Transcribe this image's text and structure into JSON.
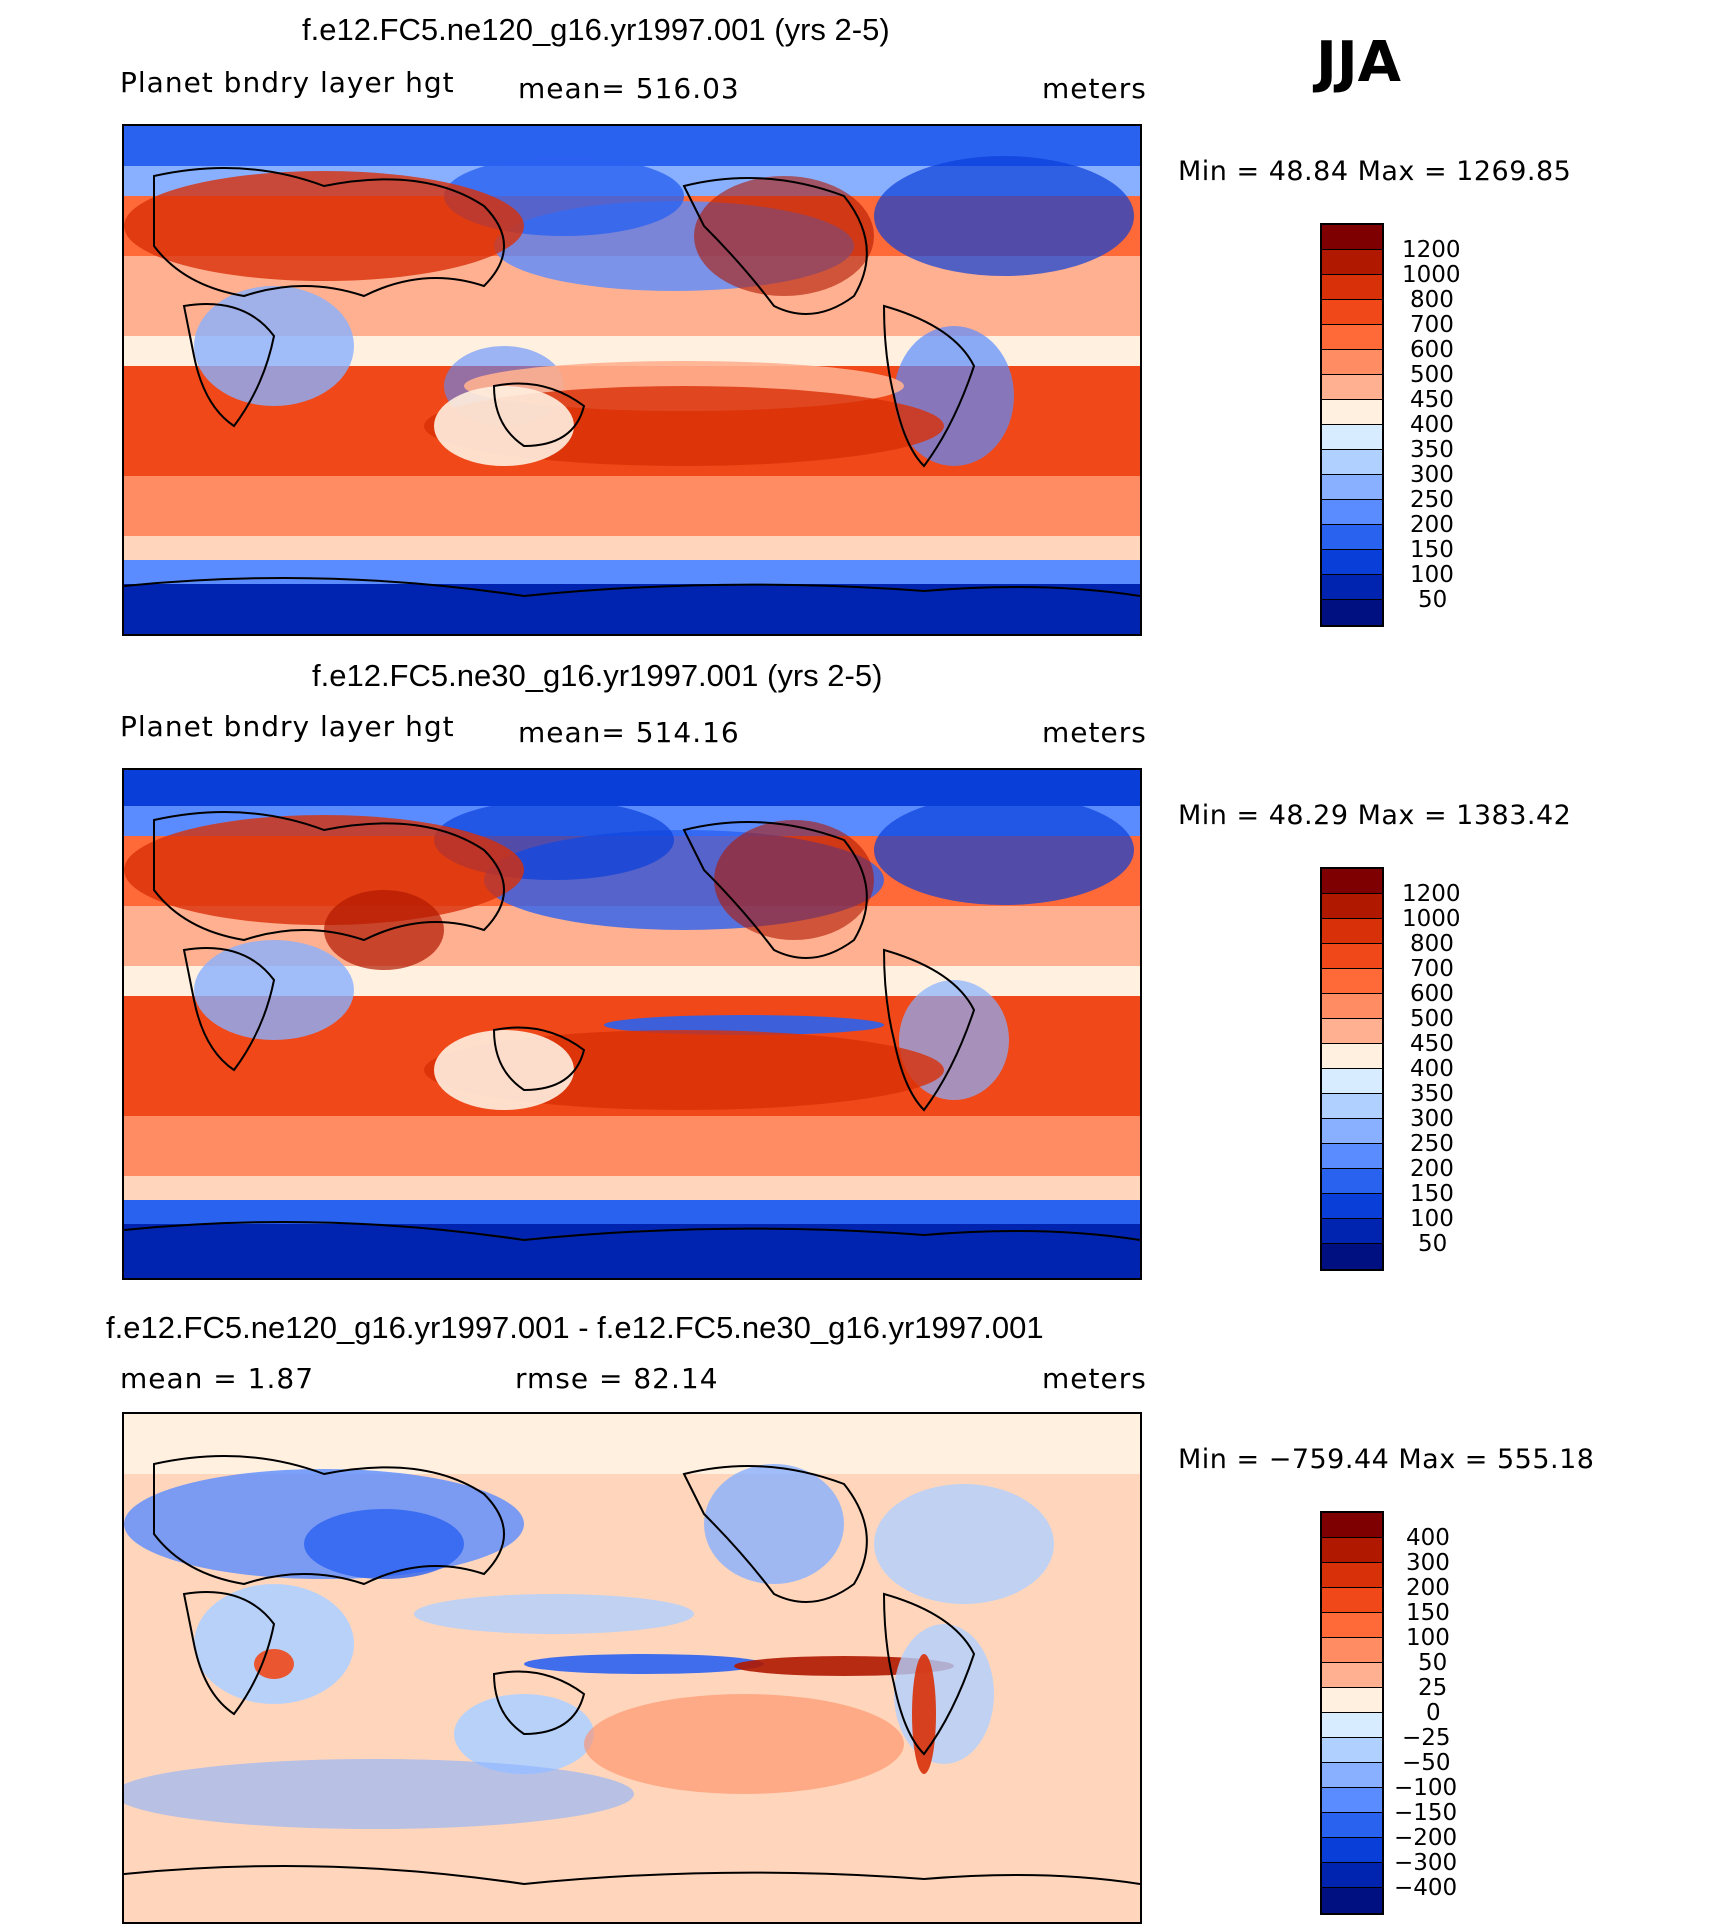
{
  "season": "JJA",
  "panels": [
    {
      "title": "f.e12.FC5.ne120_g16.yr1997.001 (yrs 2-5)",
      "left_label": "Planet bndry layer hgt",
      "center_label": "mean= 516.03",
      "right_label": "meters",
      "minmax": "Min =   48.84  Max  =  1269.85",
      "colorbar_labels": [
        "1200",
        "1000",
        "800",
        "700",
        "600",
        "500",
        "450",
        "400",
        "350",
        "300",
        "250",
        "200",
        "150",
        "100",
        "50"
      ]
    },
    {
      "title": "f.e12.FC5.ne30_g16.yr1997.001 (yrs 2-5)",
      "left_label": "Planet bndry layer hgt",
      "center_label": "mean= 514.16",
      "right_label": "meters",
      "minmax": "Min =   48.29  Max  =  1383.42",
      "colorbar_labels": [
        "1200",
        "1000",
        "800",
        "700",
        "600",
        "500",
        "450",
        "400",
        "350",
        "300",
        "250",
        "200",
        "150",
        "100",
        "50"
      ]
    },
    {
      "title": "f.e12.FC5.ne120_g16.yr1997.001 - f.e12.FC5.ne30_g16.yr1997.001",
      "left_label": "mean =     1.87",
      "center_label": "rmse =   82.14",
      "right_label": "meters",
      "minmax": "Min  =  −759.44  Max  =  555.18",
      "colorbar_labels": [
        "400",
        "300",
        "200",
        "150",
        "100",
        "50",
        "25",
        "0",
        "−25",
        "−50",
        "−100",
        "−150",
        "−200",
        "−300",
        "−400"
      ]
    }
  ],
  "colors": {
    "seq_scale": [
      "#7f0000",
      "#b01800",
      "#d83008",
      "#f04818",
      "#ff6a38",
      "#ff8c62",
      "#ffb090",
      "#ffd6bc",
      "#fff0e0",
      "#d8ecff",
      "#b0d0ff",
      "#88b0ff",
      "#5a8cff",
      "#2a62f0",
      "#0a3ed8",
      "#0024b0",
      "#001080"
    ],
    "land_outline": "#000000"
  }
}
